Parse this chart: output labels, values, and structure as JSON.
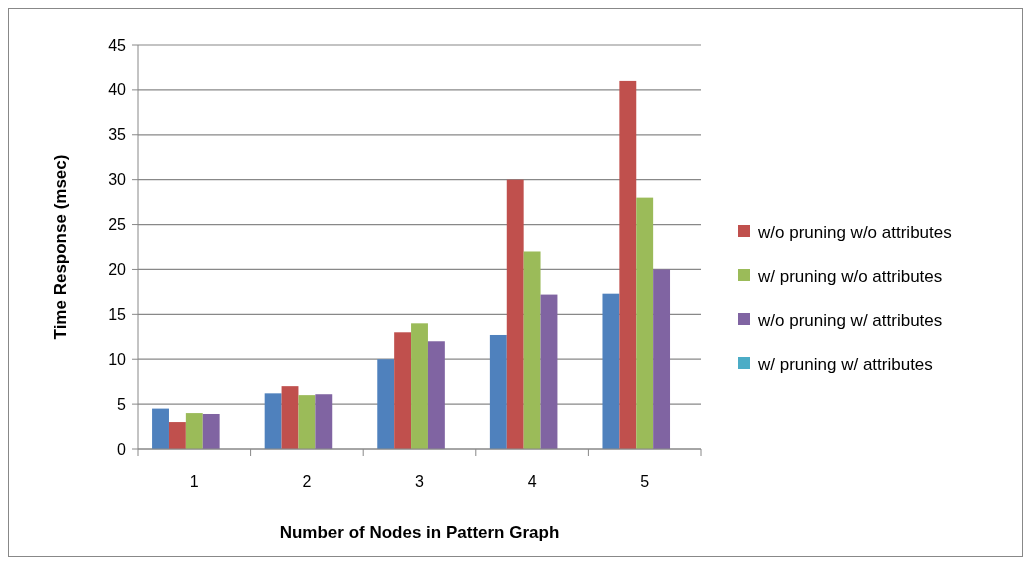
{
  "chart_data": {
    "type": "bar",
    "xlabel": "Number of Nodes in Pattern Graph",
    "ylabel": "Time Response (msec)",
    "categories": [
      "1",
      "2",
      "3",
      "4",
      "5"
    ],
    "series": [
      {
        "color": "#4f81bd",
        "values": [
          4.5,
          6.2,
          10,
          12.7,
          17.3
        ]
      },
      {
        "name": "w/o pruning w/o attributes",
        "color": "#c0504d",
        "values": [
          3,
          7,
          13,
          30,
          41
        ]
      },
      {
        "name": "w/ pruning w/o attributes",
        "color": "#9bbb59",
        "values": [
          4,
          6,
          14,
          22,
          28
        ]
      },
      {
        "name": "w/o pruning w/ attributes",
        "color": "#8064a2",
        "values": [
          3.9,
          6.1,
          12,
          17.2,
          20
        ]
      },
      {
        "name": "w/ pruning w/ attributes",
        "color": "#4bacc6",
        "values": [
          null,
          null,
          null,
          null,
          null
        ]
      }
    ],
    "ylim": [
      0,
      45
    ],
    "yticks": [
      0,
      5,
      10,
      15,
      20,
      25,
      30,
      35,
      40,
      45
    ],
    "grid": "y",
    "legend": "right"
  }
}
